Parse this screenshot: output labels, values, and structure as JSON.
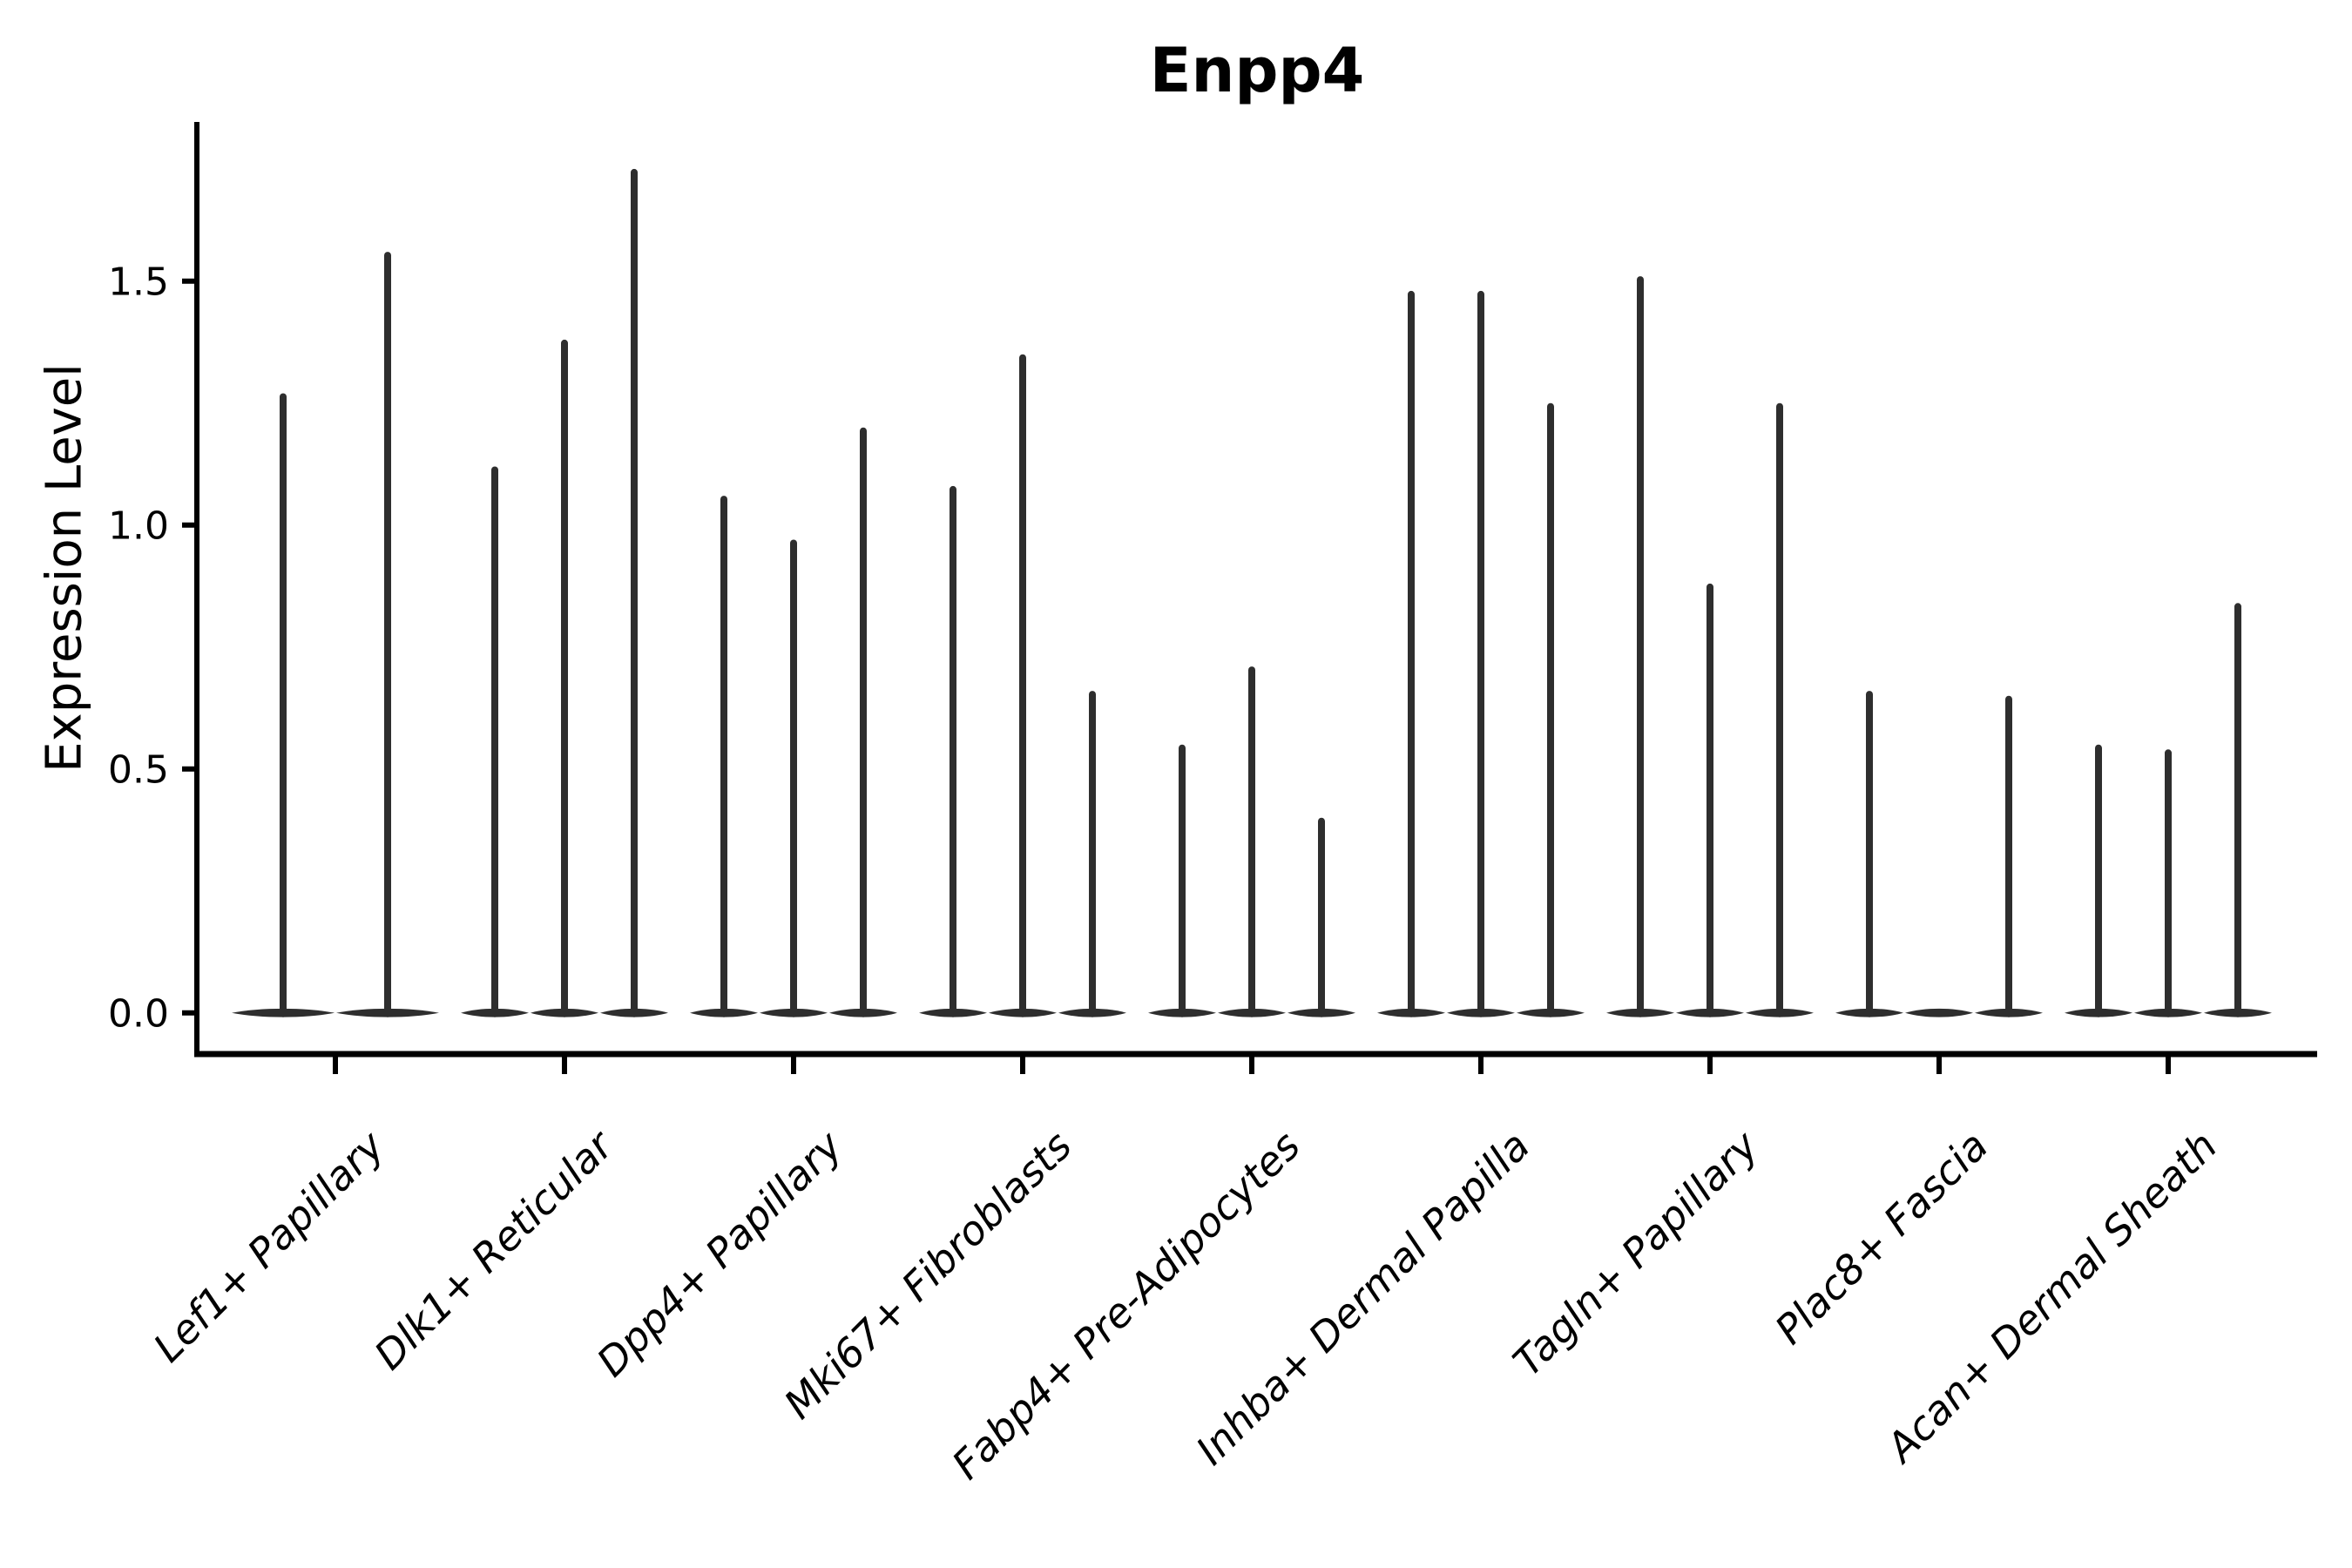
{
  "chart_data": {
    "type": "violin",
    "title": "Enpp4",
    "ylabel": "Expression Level",
    "xlabel": "",
    "yticks": [
      0.0,
      0.5,
      1.0,
      1.5
    ],
    "ytick_labels": [
      "0.0",
      "0.5",
      "1.0",
      "1.5"
    ],
    "ylim": [
      -0.085,
      1.826
    ],
    "grid": false,
    "legend": null,
    "baseline_value": 0.0,
    "violin_color": "#2e2e2e",
    "axis_color": "#000000",
    "categories": [
      "Lef1+ Papillary",
      "Dlk1+ Reticular",
      "Dpp4+ Papillary",
      "Mki67+ Fibroblasts",
      "Fabp4+ Pre-Adipocytes",
      "Inhba+ Dermal Papilla",
      "Tagln+ Papillary",
      "Plac8+ Fascia",
      "Acan+ Dermal Sheath"
    ],
    "groups": [
      {
        "category": "Lef1+ Papillary",
        "violin_maxima": [
          1.27,
          1.56
        ]
      },
      {
        "category": "Dlk1+ Reticular",
        "violin_maxima": [
          1.12,
          1.38,
          1.73
        ]
      },
      {
        "category": "Dpp4+ Papillary",
        "violin_maxima": [
          1.06,
          0.97,
          1.2
        ]
      },
      {
        "category": "Mki67+ Fibroblasts",
        "violin_maxima": [
          1.08,
          1.35,
          0.66
        ]
      },
      {
        "category": "Fabp4+ Pre-Adipocytes",
        "violin_maxima": [
          0.55,
          0.71,
          0.4
        ]
      },
      {
        "category": "Inhba+ Dermal Papilla",
        "violin_maxima": [
          1.48,
          1.48,
          1.25
        ]
      },
      {
        "category": "Tagln+ Papillary",
        "violin_maxima": [
          1.51,
          0.88,
          1.25
        ]
      },
      {
        "category": "Plac8+ Fascia",
        "violin_maxima": [
          0.66,
          0.0,
          0.65
        ]
      },
      {
        "category": "Acan+ Dermal Sheath",
        "violin_maxima": [
          0.55,
          0.54,
          0.84
        ]
      }
    ]
  }
}
